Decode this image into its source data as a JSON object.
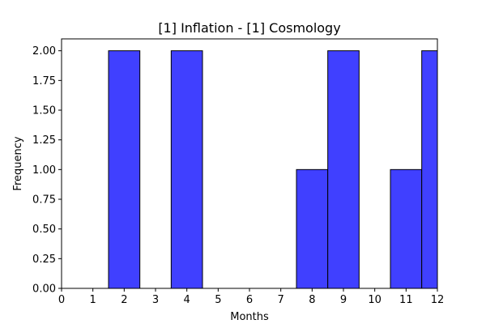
{
  "chart_data": {
    "type": "bar",
    "title": "[1] Inflation - [1] Cosmology",
    "xlabel": "Months",
    "ylabel": "Frequency",
    "xlim": [
      0,
      12
    ],
    "ylim": [
      0,
      2.1
    ],
    "x_ticks": [
      "0",
      "1",
      "2",
      "3",
      "4",
      "5",
      "6",
      "7",
      "8",
      "9",
      "10",
      "11",
      "12"
    ],
    "y_ticks": [
      "0.00",
      "0.25",
      "0.50",
      "0.75",
      "1.00",
      "1.25",
      "1.50",
      "1.75",
      "2.00"
    ],
    "bars": [
      {
        "x": 2,
        "value": 2
      },
      {
        "x": 4,
        "value": 2
      },
      {
        "x": 8,
        "value": 1
      },
      {
        "x": 9,
        "value": 2
      },
      {
        "x": 11,
        "value": 1
      },
      {
        "x": 12,
        "value": 2
      }
    ],
    "bar_color": "#4040ff",
    "edge_color": "#000000",
    "grid": false,
    "legend": "none"
  }
}
